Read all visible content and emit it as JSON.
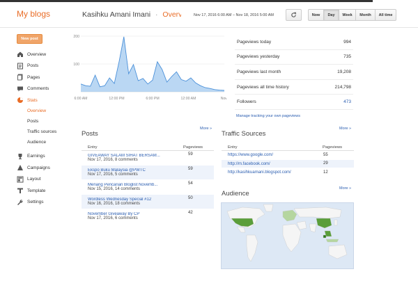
{
  "header": {
    "brand": "My blogs",
    "blog_name": "Kasihku Amani Imani",
    "separator": "·",
    "section": "Overview",
    "date_range": "Nov 17, 2016 6:00 AM – Nov 18, 2016 5:00 AM",
    "range_buttons": [
      "Now",
      "Day",
      "Week",
      "Month",
      "All time"
    ],
    "active_range": "Day"
  },
  "new_post_label": "New post",
  "sidebar": {
    "items": [
      {
        "label": "Overview",
        "icon": "house-icon"
      },
      {
        "label": "Posts",
        "icon": "posts-icon"
      },
      {
        "label": "Pages",
        "icon": "pages-icon"
      },
      {
        "label": "Comments",
        "icon": "comment-icon"
      },
      {
        "label": "Stats",
        "icon": "stats-pie-icon",
        "active": true
      }
    ],
    "stats_sub": [
      {
        "label": "Overview",
        "active": true
      },
      {
        "label": "Posts"
      },
      {
        "label": "Traffic sources"
      },
      {
        "label": "Audience"
      }
    ],
    "items2": [
      {
        "label": "Earnings",
        "icon": "trophy-icon"
      },
      {
        "label": "Campaigns",
        "icon": "campaign-icon"
      },
      {
        "label": "Layout",
        "icon": "layout-icon"
      },
      {
        "label": "Template",
        "icon": "template-icon"
      },
      {
        "label": "Settings",
        "icon": "wrench-icon"
      }
    ]
  },
  "chart_data": {
    "type": "area",
    "x_ticks": [
      "6:00 AM",
      "12:00 PM",
      "6:00 PM",
      "12:00 AM",
      "Now"
    ],
    "y_ticks": [
      200,
      100
    ],
    "ylim": [
      0,
      200
    ],
    "color": "#a9cdf0",
    "line_color": "#4a90d9",
    "values": [
      28,
      22,
      20,
      60,
      18,
      22,
      50,
      30,
      108,
      198,
      65,
      98,
      40,
      48,
      28,
      42,
      108,
      80,
      35,
      55,
      72,
      44,
      38,
      50,
      32,
      22,
      15,
      12,
      8,
      6,
      5
    ]
  },
  "stats": [
    {
      "label": "Pageviews today",
      "value": "994"
    },
    {
      "label": "Pageviews yesterday",
      "value": "735"
    },
    {
      "label": "Pageviews last month",
      "value": "19,208"
    },
    {
      "label": "Pageviews all time history",
      "value": "214,798"
    },
    {
      "label": "Followers",
      "value": "473",
      "link": true
    }
  ],
  "manage_link": "Manage tracking your own pageviews",
  "more_label": "More »",
  "posts": {
    "title": "Posts",
    "col_entry": "Entry",
    "col_views": "Pageviews",
    "rows": [
      {
        "title": "GIVEAWAY SALAM SIHAT BERSAM...",
        "meta": "Nov 17, 2016, 8 comments",
        "views": "59"
      },
      {
        "title": "Ekspo Buku Malaysia @PWTC",
        "meta": "Nov 17, 2016, 5 comments",
        "views": "59"
      },
      {
        "title": "Menang Pencarian Bloglist Novemb...",
        "meta": "Nov 15, 2016, 14 comments",
        "views": "54"
      },
      {
        "title": "Wordless Wednesday Special #12",
        "meta": "Nov 16, 2016, 18 comments",
        "views": "50"
      },
      {
        "title": "November Giveaway By CP",
        "meta": "Nov 17, 2016, 6 comments",
        "views": "42"
      }
    ]
  },
  "traffic": {
    "title": "Traffic Sources",
    "col_entry": "Entry",
    "col_views": "Pageviews",
    "rows": [
      {
        "url": "https://www.google.com/",
        "views": "55"
      },
      {
        "url": "http://m.facebook.com/",
        "views": "29"
      },
      {
        "url": "http://kasihkuamani.blogspot.com/",
        "views": "12"
      }
    ]
  },
  "audience": {
    "title": "Audience",
    "land_color": "#f5f5f5",
    "highlight_color": "#5a9e3a",
    "light_highlight": "#b5d6a0"
  }
}
